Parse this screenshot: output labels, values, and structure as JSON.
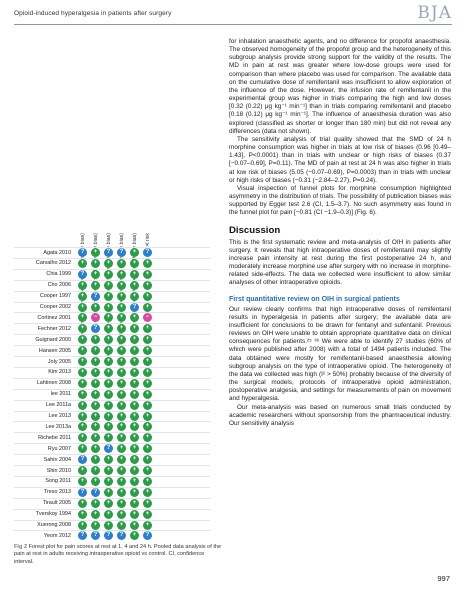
{
  "header": {
    "running_title": "Opioid-induced hyperalgesia in patients after surgery",
    "journal": "BJA"
  },
  "figure": {
    "columns": [
      "Random sequence generation (selection bias)",
      "Allocation concealment (selection bias)",
      "Blinding of participants and personnel (performance bias)",
      "Blinding of outcome assessment (detection bias)",
      "Incomplete outcome data (attrition bias)",
      "Total risk"
    ],
    "symbols": {
      "low": "+",
      "unclear": "?",
      "high": "−"
    },
    "colors": {
      "low": "#2e9b4b",
      "unclear": "#2f7fc6",
      "high": "#d04da0"
    },
    "studies": [
      {
        "name": "Agata 2010",
        "ratings": [
          "unclear",
          "low",
          "unclear",
          "unclear",
          "low",
          "unclear"
        ]
      },
      {
        "name": "Carvalho 2012",
        "ratings": [
          "low",
          "low",
          "low",
          "low",
          "low",
          "low"
        ]
      },
      {
        "name": "Chia 1999",
        "ratings": [
          "unclear",
          "low",
          "low",
          "low",
          "low",
          "low"
        ]
      },
      {
        "name": "Cho 2006",
        "ratings": [
          "low",
          "low",
          "low",
          "low",
          "low",
          "low"
        ]
      },
      {
        "name": "Cooper 1997",
        "ratings": [
          "low",
          "unclear",
          "low",
          "low",
          "low",
          "low"
        ]
      },
      {
        "name": "Cooper 2002",
        "ratings": [
          "low",
          "low",
          "low",
          "low",
          "unclear",
          "low"
        ]
      },
      {
        "name": "Cortinez 2001",
        "ratings": [
          "low",
          "high",
          "low",
          "low",
          "low",
          "high"
        ]
      },
      {
        "name": "Fechner 2012",
        "ratings": [
          "low",
          "unclear",
          "low",
          "low",
          "low",
          "low"
        ]
      },
      {
        "name": "Guignard 2000",
        "ratings": [
          "low",
          "low",
          "low",
          "low",
          "low",
          "low"
        ]
      },
      {
        "name": "Hansen 2005",
        "ratings": [
          "low",
          "low",
          "low",
          "low",
          "low",
          "low"
        ]
      },
      {
        "name": "Joly 2005",
        "ratings": [
          "low",
          "low",
          "low",
          "low",
          "low",
          "low"
        ]
      },
      {
        "name": "Kim 2013",
        "ratings": [
          "low",
          "low",
          "low",
          "low",
          "low",
          "low"
        ]
      },
      {
        "name": "Lahtinen 2008",
        "ratings": [
          "low",
          "low",
          "low",
          "low",
          "low",
          "low"
        ]
      },
      {
        "name": "lee 2011",
        "ratings": [
          "low",
          "low",
          "low",
          "low",
          "low",
          "low"
        ]
      },
      {
        "name": "Lee 2011a",
        "ratings": [
          "low",
          "low",
          "low",
          "low",
          "low",
          "low"
        ]
      },
      {
        "name": "Lee 2013",
        "ratings": [
          "low",
          "low",
          "low",
          "low",
          "low",
          "low"
        ]
      },
      {
        "name": "Lee 2013a",
        "ratings": [
          "low",
          "low",
          "low",
          "low",
          "low",
          "low"
        ]
      },
      {
        "name": "Richebe 2011",
        "ratings": [
          "low",
          "low",
          "low",
          "low",
          "low",
          "low"
        ]
      },
      {
        "name": "Ryu 2007",
        "ratings": [
          "low",
          "low",
          "unclear",
          "low",
          "low",
          "low"
        ]
      },
      {
        "name": "Sahin 2004",
        "ratings": [
          "unclear",
          "low",
          "low",
          "low",
          "low",
          "low"
        ]
      },
      {
        "name": "Shin 2010",
        "ratings": [
          "low",
          "low",
          "low",
          "low",
          "low",
          "low"
        ]
      },
      {
        "name": "Song 2011",
        "ratings": [
          "low",
          "low",
          "low",
          "low",
          "low",
          "low"
        ]
      },
      {
        "name": "Treso 2013",
        "ratings": [
          "unclear",
          "unclear",
          "low",
          "low",
          "low",
          "low"
        ]
      },
      {
        "name": "Tirault 2005",
        "ratings": [
          "low",
          "low",
          "low",
          "low",
          "low",
          "low"
        ]
      },
      {
        "name": "Tverskoy 1994",
        "ratings": [
          "low",
          "low",
          "low",
          "low",
          "low",
          "low"
        ]
      },
      {
        "name": "Xuerong 2008",
        "ratings": [
          "low",
          "low",
          "low",
          "low",
          "low",
          "low"
        ]
      },
      {
        "name": "Yeom 2012",
        "ratings": [
          "unclear",
          "unclear",
          "unclear",
          "unclear",
          "low",
          "unclear"
        ]
      }
    ]
  },
  "caption": {
    "label": "Fig 2",
    "text": "Forest plot for pain scores at rest at 1, 4 and 24 h. Pooled data analysis of the pain at rest in adults receiving intraoperative opioid vs control. CI, confidence interval."
  },
  "body": {
    "p1": "for inhalation anaesthetic agents, and no difference for propofol anaesthesia. The observed homogeneity of the propofol group and the heterogeneity of this subgroup analysis provide strong support for the validity of the results. The MD in pain at rest was greater where low-dose groups were used for comparison than where placebo was used for comparison. The available data on the cumulative dose of remifentanil was insufficient to allow exploration of the influence of the dose. However, the infusion rate of remifentanil in the experimental group was higher in trials comparing the high and low doses [0.32 (0.22) μg kg⁻¹ min⁻¹] than in trials comparing remifentanil and placebo [0.18 (0.12) μg kg⁻¹ min⁻¹]. The influence of anaesthesia duration was also explored (classified as shorter or longer than 180 min) but did not reveal any differences (data not shown).",
    "p2": "The sensitivity analysis of trial quality showed that the SMD of 24 h morphine consumption was higher in trials at low risk of biases (0.96 [0.49–1.43], P<0.0001) than in trials with unclear or high risks of biases (0.37 [−0.07–0.69], P=0.11). The MD of pain at rest at 24 h was also higher in trials at low risk of biases (5.05 (−0.07–0.69), P=0.0003) than in trials with unclear or high risks of biases (−0.31 (−2.84–2.27), P=0.24).",
    "p3": "Visual inspection of funnel plots for morphine consumption highlighted asymmetry in the distribution of trials. The possibility of publication biases was supported by Egger test 2.6 (CI, 1.5–3.7). No such asymmetry was found in the funnel plot for pain [−0.81 (CI −1.9–0.3)] (Fig. 6).",
    "discussion_heading": "Discussion",
    "p4": "This is the first systematic review and meta-analysis of OIH in patients after surgery. It reveals that high intraoperative doses of remifentanil may slightly increase pain intensity at rest during the first postoperative 24 h, and moderately increase morphine use after surgery with no increase in morphine-related side-effects. The data we collected were insufficient to allow similar analyses of other intraoperative opioids.",
    "subheading": "First quantitative review on OIH in surgical patients",
    "p5": "Our review clearly confirms that high intraoperative doses of remifentanil results in hyperalgesia in patients after surgery; the available data are insufficient for conclusions to be drawn for fentanyl and sufentanil. Previous reviews on OIH were unable to obtain appropriate quantitative data on clinical consequences for patients.²⁵ ³⁶ We were able to identify 27 studies (60% of which were published after 2008) with a total of 1494 patients included. The data obtained were mostly for remifentanil-based anaesthesia allowing subgroup analysis on the type of intraoperative opioid. The heterogeneity of the data we collected was high (I² > 50%) probably because of the diversity of the surgical models, protocols of intraoperative opioid administration, postoperative analgesia, and settings for measurements of pain on movement and hyperalgesia.",
    "p6": "Our meta-analysis was based on numerous small trials conducted by academic researchers without sponsorship from the pharmaceutical industry. Our sensitivity analysis"
  },
  "page_number": "997"
}
